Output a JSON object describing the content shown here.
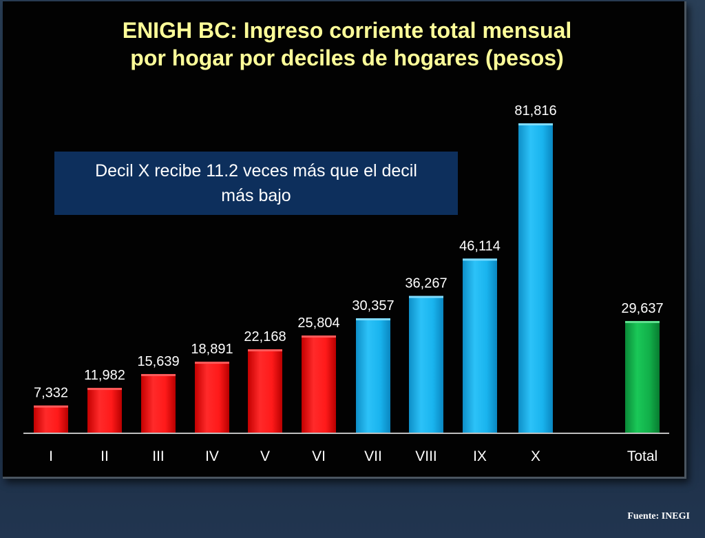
{
  "source": "Fuente: INEGI",
  "callout": "Decil X recibe 11.2 veces más que el decil más bajo",
  "colors": {
    "low_deciles": "#ff1a1a",
    "high_deciles": "#19b4ee",
    "total": "#12b04a",
    "title": "#ffff99",
    "callout_bg": "#0d2f5c"
  },
  "chart_data": {
    "type": "bar",
    "title_lines": [
      "ENIGH BC: Ingreso corriente total mensual",
      "por hogar por deciles de hogares (pesos)"
    ],
    "title": "ENIGH BC: Ingreso corriente total mensual por hogar por deciles de hogares (pesos)",
    "xlabel": "",
    "ylabel": "",
    "categories": [
      "I",
      "II",
      "III",
      "IV",
      "V",
      "VI",
      "VII",
      "VIII",
      "IX",
      "X",
      "Total"
    ],
    "values": [
      7332,
      11982,
      15639,
      18891,
      22168,
      25804,
      30357,
      36267,
      46114,
      81816,
      29637
    ],
    "value_labels": [
      "7,332",
      "11,982",
      "15,639",
      "18,891",
      "22,168",
      "25,804",
      "30,357",
      "36,267",
      "46,114",
      "81,816",
      "29,637"
    ],
    "bar_groups": [
      "low",
      "low",
      "low",
      "low",
      "low",
      "low",
      "high",
      "high",
      "high",
      "high",
      "total"
    ],
    "ylim": [
      0,
      81816
    ],
    "grid": false,
    "legend": "none"
  }
}
